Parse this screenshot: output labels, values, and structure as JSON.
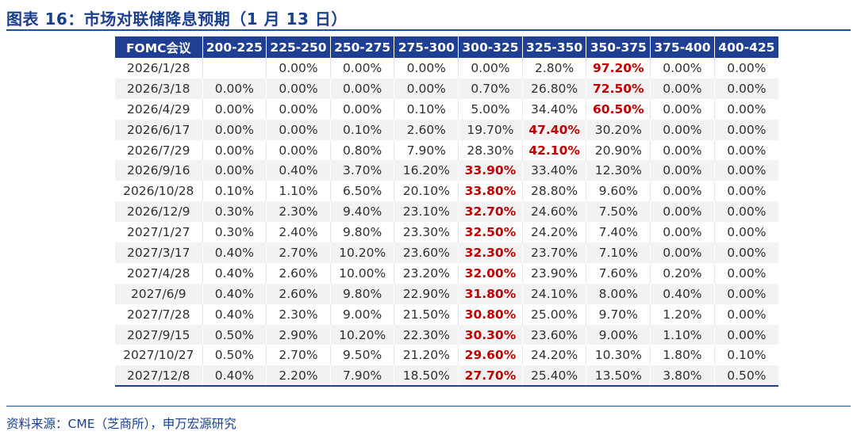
{
  "figure": {
    "title": "图表 16：市场对联储降息预期（1 月 13 日）",
    "source": "资料来源：CME（芝商所），申万宏源研究"
  },
  "table": {
    "headers": [
      "FOMC会议",
      "200-225",
      "225-250",
      "250-275",
      "275-300",
      "300-325",
      "325-350",
      "350-375",
      "375-400",
      "400-425"
    ],
    "rows": [
      {
        "date": "2026/1/28",
        "values": [
          "",
          "0.00%",
          "0.00%",
          "0.00%",
          "0.00%",
          "2.80%",
          "97.20%",
          "0.00%",
          "0.00%"
        ],
        "highlight": 6
      },
      {
        "date": "2026/3/18",
        "values": [
          "0.00%",
          "0.00%",
          "0.00%",
          "0.00%",
          "0.70%",
          "26.80%",
          "72.50%",
          "0.00%",
          "0.00%"
        ],
        "highlight": 6
      },
      {
        "date": "2026/4/29",
        "values": [
          "0.00%",
          "0.00%",
          "0.00%",
          "0.10%",
          "5.00%",
          "34.40%",
          "60.50%",
          "0.00%",
          "0.00%"
        ],
        "highlight": 6
      },
      {
        "date": "2026/6/17",
        "values": [
          "0.00%",
          "0.00%",
          "0.10%",
          "2.60%",
          "19.70%",
          "47.40%",
          "30.20%",
          "0.00%",
          "0.00%"
        ],
        "highlight": 5
      },
      {
        "date": "2026/7/29",
        "values": [
          "0.00%",
          "0.00%",
          "0.80%",
          "7.90%",
          "28.30%",
          "42.10%",
          "20.90%",
          "0.00%",
          "0.00%"
        ],
        "highlight": 5
      },
      {
        "date": "2026/9/16",
        "values": [
          "0.00%",
          "0.40%",
          "3.70%",
          "16.20%",
          "33.90%",
          "33.40%",
          "12.30%",
          "0.00%",
          "0.00%"
        ],
        "highlight": 4
      },
      {
        "date": "2026/10/28",
        "values": [
          "0.10%",
          "1.10%",
          "6.50%",
          "20.10%",
          "33.80%",
          "28.80%",
          "9.60%",
          "0.00%",
          "0.00%"
        ],
        "highlight": 4
      },
      {
        "date": "2026/12/9",
        "values": [
          "0.30%",
          "2.30%",
          "9.40%",
          "23.10%",
          "32.70%",
          "24.60%",
          "7.50%",
          "0.00%",
          "0.00%"
        ],
        "highlight": 4
      },
      {
        "date": "2027/1/27",
        "values": [
          "0.30%",
          "2.40%",
          "9.80%",
          "23.30%",
          "32.50%",
          "24.20%",
          "7.40%",
          "0.00%",
          "0.00%"
        ],
        "highlight": 4
      },
      {
        "date": "2027/3/17",
        "values": [
          "0.40%",
          "2.70%",
          "10.20%",
          "23.60%",
          "32.30%",
          "23.70%",
          "7.10%",
          "0.00%",
          "0.00%"
        ],
        "highlight": 4
      },
      {
        "date": "2027/4/28",
        "values": [
          "0.40%",
          "2.60%",
          "10.00%",
          "23.20%",
          "32.00%",
          "23.90%",
          "7.60%",
          "0.20%",
          "0.00%"
        ],
        "highlight": 4
      },
      {
        "date": "2027/6/9",
        "values": [
          "0.40%",
          "2.60%",
          "9.80%",
          "22.90%",
          "31.80%",
          "24.10%",
          "8.00%",
          "0.40%",
          "0.00%"
        ],
        "highlight": 4
      },
      {
        "date": "2027/7/28",
        "values": [
          "0.40%",
          "2.30%",
          "9.00%",
          "21.50%",
          "30.80%",
          "25.00%",
          "9.70%",
          "1.20%",
          "0.00%"
        ],
        "highlight": 4
      },
      {
        "date": "2027/9/15",
        "values": [
          "0.50%",
          "2.90%",
          "10.20%",
          "22.30%",
          "30.30%",
          "23.60%",
          "9.00%",
          "1.10%",
          "0.00%"
        ],
        "highlight": 4
      },
      {
        "date": "2027/10/27",
        "values": [
          "0.50%",
          "2.70%",
          "9.50%",
          "21.20%",
          "29.60%",
          "24.20%",
          "10.30%",
          "1.80%",
          "0.10%"
        ],
        "highlight": 4
      },
      {
        "date": "2027/12/8",
        "values": [
          "0.40%",
          "2.20%",
          "7.90%",
          "18.50%",
          "27.70%",
          "25.40%",
          "13.50%",
          "3.80%",
          "0.50%"
        ],
        "highlight": 4
      }
    ]
  },
  "colors": {
    "header_bg": "#1f3f93",
    "highlight": "#c00000",
    "title": "#1a3f8f"
  }
}
